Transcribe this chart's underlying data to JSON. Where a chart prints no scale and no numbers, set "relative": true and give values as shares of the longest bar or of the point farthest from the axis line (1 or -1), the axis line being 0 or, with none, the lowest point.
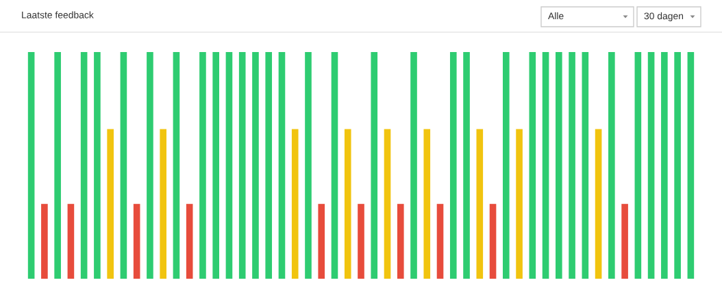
{
  "chart_data": {
    "type": "bar",
    "title": "Laatste feedback",
    "relative": true,
    "categories": [
      null,
      null,
      null,
      null,
      null,
      null,
      null,
      null,
      null,
      null,
      null,
      null,
      null,
      null,
      null,
      null,
      null,
      null,
      null,
      null,
      null,
      null,
      null,
      null,
      null,
      null,
      null,
      null,
      null,
      null,
      null,
      null,
      null,
      null,
      null,
      null,
      null,
      null,
      null,
      null,
      null,
      null,
      null,
      null,
      null,
      null,
      null,
      null,
      null,
      null,
      null
    ],
    "values": [
      1,
      0.33,
      1,
      0.33,
      1,
      1,
      0.66,
      1,
      0.33,
      1,
      0.66,
      1,
      0.33,
      1,
      1,
      1,
      1,
      1,
      1,
      1,
      0.66,
      1,
      0.33,
      1,
      0.66,
      0.33,
      1,
      0.66,
      0.33,
      1,
      0.66,
      0.33,
      1,
      1,
      0.66,
      0.33,
      1,
      0.66,
      1,
      1,
      1,
      1,
      1,
      0.66,
      1,
      0.33,
      1,
      1,
      1,
      1,
      1
    ],
    "colors": [
      "#2ecc71",
      "#e74c3c",
      "#2ecc71",
      "#e74c3c",
      "#2ecc71",
      "#2ecc71",
      "#f1c40f",
      "#2ecc71",
      "#e74c3c",
      "#2ecc71",
      "#f1c40f",
      "#2ecc71",
      "#e74c3c",
      "#2ecc71",
      "#2ecc71",
      "#2ecc71",
      "#2ecc71",
      "#2ecc71",
      "#2ecc71",
      "#2ecc71",
      "#f1c40f",
      "#2ecc71",
      "#e74c3c",
      "#2ecc71",
      "#f1c40f",
      "#e74c3c",
      "#2ecc71",
      "#f1c40f",
      "#e74c3c",
      "#2ecc71",
      "#f1c40f",
      "#e74c3c",
      "#2ecc71",
      "#2ecc71",
      "#f1c40f",
      "#e74c3c",
      "#2ecc71",
      "#f1c40f",
      "#2ecc71",
      "#2ecc71",
      "#2ecc71",
      "#2ecc71",
      "#2ecc71",
      "#f1c40f",
      "#2ecc71",
      "#e74c3c",
      "#2ecc71",
      "#2ecc71",
      "#2ecc71",
      "#2ecc71",
      "#2ecc71"
    ],
    "annotations": [
      "Alle",
      "30 dagen"
    ],
    "grid": false,
    "legend": false
  }
}
